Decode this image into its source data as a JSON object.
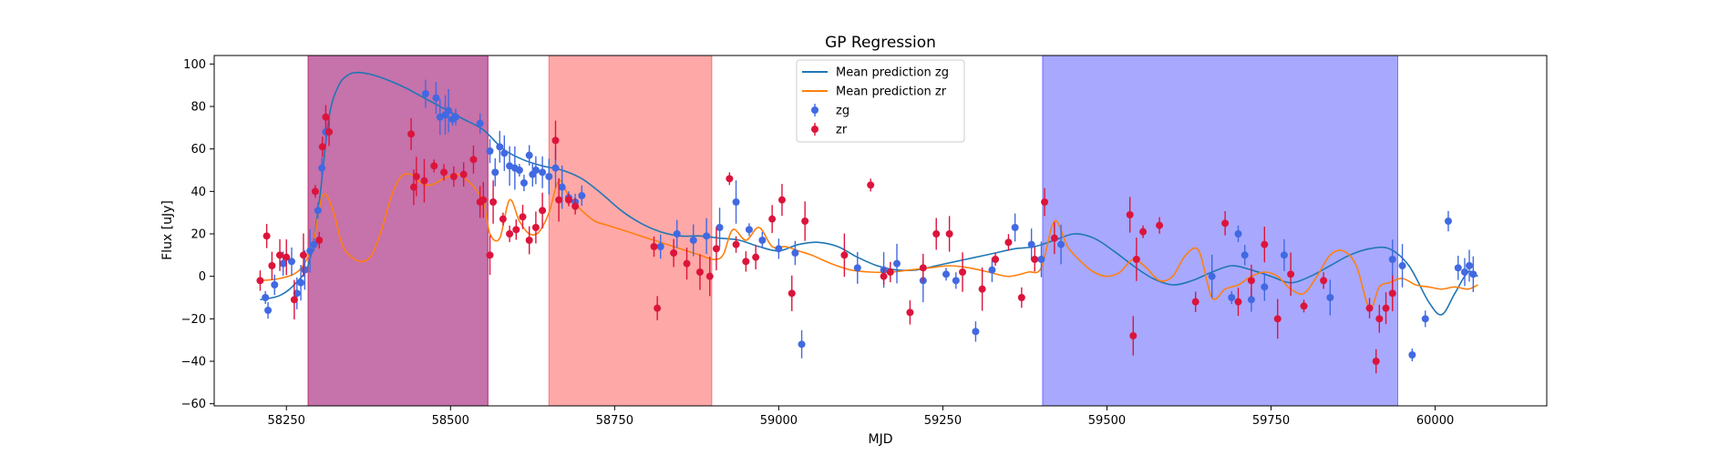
{
  "chart_data": {
    "type": "scatter",
    "title": "GP Regression",
    "xlabel": "MJD",
    "ylabel": "Flux [uJy]",
    "xlim": [
      58140,
      60170
    ],
    "ylim": [
      -61,
      104
    ],
    "grid": false,
    "legend_position": "top-center",
    "x_ticks": [
      58250,
      58500,
      58750,
      59000,
      59250,
      59500,
      59750,
      60000
    ],
    "y_ticks": [
      -60,
      -40,
      -20,
      0,
      20,
      40,
      60,
      80,
      100
    ],
    "shaded_regions": [
      {
        "x0": 58283,
        "x1": 58557,
        "color": "#0000ff",
        "alpha": 0.33
      },
      {
        "x0": 58283,
        "x1": 58557,
        "color": "#ff0000",
        "alpha": 0.33
      },
      {
        "x0": 58650,
        "x1": 58898,
        "color": "#ff0000",
        "alpha": 0.34
      },
      {
        "x0": 59402,
        "x1": 59943,
        "color": "#0000ff",
        "alpha": 0.34
      }
    ],
    "legend": [
      {
        "label": "Mean prediction zg",
        "kind": "line",
        "color": "#1f77b4"
      },
      {
        "label": "Mean prediction zr",
        "kind": "line",
        "color": "#ff7f0e"
      },
      {
        "label": "zg",
        "kind": "marker",
        "color": "#4169e1"
      },
      {
        "label": "zr",
        "kind": "marker",
        "color": "#dc143c"
      }
    ],
    "series": [
      {
        "name": "Mean prediction zg",
        "type": "line",
        "color": "#1f77b4",
        "x": [
          58210,
          58240,
          58265,
          58285,
          58300,
          58315,
          58330,
          58345,
          58360,
          58380,
          58400,
          58430,
          58460,
          58490,
          58520,
          58550,
          58580,
          58610,
          58640,
          58670,
          58700,
          58730,
          58760,
          58790,
          58820,
          58850,
          58880,
          58910,
          58940,
          58970,
          59000,
          59030,
          59060,
          59090,
          59120,
          59150,
          59180,
          59210,
          59240,
          59270,
          59300,
          59330,
          59360,
          59390,
          59420,
          59450,
          59480,
          59510,
          59540,
          59570,
          59600,
          59630,
          59660,
          59690,
          59720,
          59750,
          59780,
          59810,
          59840,
          59870,
          59900,
          59930,
          59960,
          59990,
          60010,
          60030,
          60050,
          60065
        ],
        "y": [
          -11,
          -9,
          -3,
          7,
          35,
          75,
          90,
          95,
          96,
          95,
          93,
          89,
          84,
          79,
          74,
          69,
          60,
          55,
          52,
          50,
          46,
          39,
          31,
          25,
          21,
          19,
          19,
          18,
          17,
          14,
          12,
          15,
          16,
          14,
          9,
          5,
          3,
          3,
          5,
          7,
          9,
          11,
          13,
          14,
          17,
          20,
          18,
          12,
          5,
          -1,
          -4,
          -2,
          2,
          5,
          3,
          0,
          -3,
          0,
          5,
          10,
          13,
          13,
          5,
          -12,
          -18,
          -8,
          2,
          0
        ]
      },
      {
        "name": "Mean prediction zr",
        "type": "line",
        "color": "#ff7f0e",
        "x": [
          58210,
          58240,
          58270,
          58290,
          58305,
          58320,
          58335,
          58350,
          58365,
          58380,
          58395,
          58410,
          58425,
          58440,
          58455,
          58470,
          58490,
          58510,
          58530,
          58550,
          58560,
          58575,
          58590,
          58605,
          58620,
          58635,
          58650,
          58665,
          58680,
          58700,
          58720,
          58740,
          58760,
          58780,
          58800,
          58820,
          58840,
          58860,
          58880,
          58900,
          58915,
          58930,
          58950,
          58970,
          58990,
          59010,
          59030,
          59050,
          59080,
          59110,
          59140,
          59170,
          59200,
          59230,
          59260,
          59290,
          59320,
          59350,
          59380,
          59400,
          59420,
          59440,
          59460,
          59480,
          59500,
          59520,
          59540,
          59560,
          59580,
          59600,
          59620,
          59640,
          59660,
          59680,
          59700,
          59720,
          59740,
          59760,
          59780,
          59800,
          59820,
          59840,
          59860,
          59880,
          59900,
          59915,
          59930,
          59950,
          59970,
          59990,
          60010,
          60030,
          60050,
          60065
        ],
        "y": [
          -2,
          -1,
          3,
          15,
          38,
          32,
          15,
          9,
          7,
          10,
          22,
          38,
          47,
          48,
          44,
          43,
          46,
          48,
          44,
          35,
          20,
          18,
          36,
          26,
          20,
          21,
          30,
          45,
          38,
          31,
          26,
          24,
          22,
          20,
          18,
          16,
          14,
          12,
          10,
          8,
          10,
          22,
          17,
          23,
          14,
          14,
          12,
          10,
          6,
          3,
          2,
          2,
          3,
          4,
          5,
          4,
          2,
          0,
          2,
          4,
          26,
          14,
          7,
          2,
          0,
          2,
          8,
          4,
          -2,
          0,
          10,
          12,
          -10,
          -6,
          -4,
          0,
          2,
          0,
          -6,
          -8,
          0,
          10,
          12,
          5,
          -15,
          -5,
          -3,
          -1,
          -4,
          -5,
          -6,
          -5,
          -6,
          -4
        ]
      },
      {
        "name": "zg",
        "type": "scatter",
        "color": "#4169e1",
        "x": [
          58218,
          58222,
          58232,
          58245,
          58258,
          58266,
          58272,
          58278,
          58286,
          58292,
          58298,
          58304,
          58310,
          58462,
          58478,
          58484,
          58492,
          58497,
          58503,
          58508,
          58545,
          58560,
          58568,
          58575,
          58582,
          58590,
          58598,
          58605,
          58612,
          58620,
          58625,
          58630,
          58640,
          58650,
          58660,
          58670,
          58680,
          58690,
          58700,
          58820,
          58845,
          58870,
          58890,
          58910,
          58935,
          58955,
          58975,
          59000,
          59025,
          59035,
          59120,
          59160,
          59180,
          59220,
          59255,
          59270,
          59300,
          59325,
          59360,
          59385,
          59400,
          59430,
          59660,
          59690,
          59700,
          59710,
          59720,
          59740,
          59770,
          59840,
          59935,
          59950,
          59965,
          59985,
          60020,
          60035,
          60045,
          60052,
          60058
        ],
        "y": [
          -10,
          -16,
          -4,
          6,
          7,
          -8,
          -3,
          3,
          12,
          15,
          31,
          51,
          68,
          86,
          84,
          75,
          76,
          78,
          74,
          75,
          72,
          59,
          49,
          61,
          58,
          52,
          51,
          50,
          44,
          57,
          48,
          50,
          49,
          47,
          51,
          42,
          37,
          35,
          38,
          14,
          20,
          17,
          19,
          23,
          35,
          22,
          17,
          13,
          11,
          -32,
          4,
          3,
          6,
          -2,
          1,
          -2,
          -26,
          3,
          23,
          15,
          8,
          15,
          0,
          -10,
          20,
          10,
          -11,
          -5,
          10,
          -10,
          8,
          5,
          -37,
          -20,
          26,
          4,
          2,
          5,
          1
        ]
      },
      {
        "name": "zr",
        "type": "scatter",
        "color": "#dc143c",
        "x": [
          58210,
          58220,
          58228,
          58240,
          58250,
          58262,
          58276,
          58294,
          58300,
          58305,
          58310,
          58315,
          58440,
          58444,
          58448,
          58460,
          58475,
          58490,
          58505,
          58520,
          58535,
          58545,
          58550,
          58560,
          58565,
          58580,
          58590,
          58600,
          58610,
          58620,
          58630,
          58640,
          58660,
          58665,
          58680,
          58690,
          58810,
          58815,
          58840,
          58860,
          58880,
          58895,
          58905,
          58925,
          58935,
          58950,
          58965,
          58990,
          59005,
          59020,
          59040,
          59100,
          59140,
          59160,
          59170,
          59200,
          59220,
          59240,
          59260,
          59280,
          59310,
          59330,
          59350,
          59370,
          59390,
          59405,
          59420,
          59535,
          59540,
          59545,
          59555,
          59580,
          59635,
          59680,
          59700,
          59720,
          59740,
          59760,
          59780,
          59800,
          59830,
          59900,
          59910,
          59915,
          59925,
          59935
        ],
        "y": [
          -2,
          19,
          5,
          10,
          9,
          -11,
          10,
          40,
          17,
          61,
          75,
          68,
          67,
          42,
          47,
          45,
          52,
          49,
          47,
          48,
          55,
          35,
          36,
          10,
          35,
          27,
          20,
          22,
          28,
          17,
          23,
          31,
          64,
          36,
          36,
          33,
          14,
          -15,
          11,
          6,
          2,
          0,
          13,
          46,
          15,
          7,
          9,
          27,
          36,
          -8,
          26,
          10,
          43,
          0,
          2,
          -17,
          4,
          20,
          20,
          2,
          -6,
          8,
          16,
          -10,
          8,
          35,
          18,
          29,
          -28,
          8,
          21,
          24,
          -12,
          25,
          -12,
          -2,
          15,
          -20,
          1,
          -14,
          -2,
          -15,
          -40,
          -20,
          -15,
          -8
        ]
      }
    ]
  }
}
